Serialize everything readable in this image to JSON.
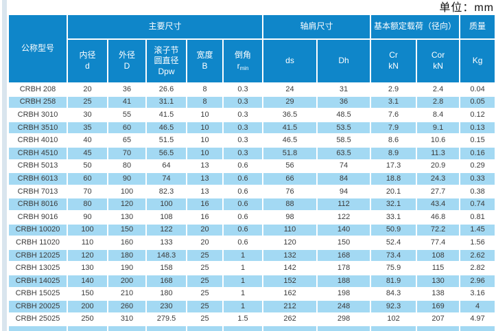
{
  "page": {
    "unit_label": "单位：mm",
    "colors": {
      "header_blue": "#0f86c9",
      "row_alt_blue": "#a3d9f3",
      "side_strip": "#d9e5ee"
    }
  },
  "table": {
    "group_headers": {
      "model": "公称型号",
      "main_dimensions": "主要尺寸",
      "shoulder_dimensions": "轴肩尺寸",
      "load_rating": "基本额定载荷（径向）",
      "mass": "质量"
    },
    "sub_headers": {
      "bore": {
        "line1": "内径",
        "line2": "d"
      },
      "outer": {
        "line1": "外径",
        "line2": "D"
      },
      "pitch": {
        "line1": "滚子节",
        "line2": "圆直径",
        "line3": "Dpw"
      },
      "width": {
        "line1": "宽度",
        "line2": "B"
      },
      "chamfer": {
        "line1": "倒角",
        "symbol": "r",
        "sub": "min"
      },
      "ds": {
        "line1": "ds"
      },
      "dh": {
        "line1": "Dh"
      },
      "cr": {
        "line1": "Cr",
        "line2": "kN"
      },
      "cor": {
        "line1": "Cor",
        "line2": "kN"
      },
      "kg": {
        "line1": "Kg"
      }
    },
    "rows": [
      [
        "CRBH 208",
        "20",
        "36",
        "26.6",
        "8",
        "0.3",
        "24",
        "31",
        "2.9",
        "2.4",
        "0.04"
      ],
      [
        "CRBH 258",
        "25",
        "41",
        "31.1",
        "8",
        "0.3",
        "29",
        "36",
        "3.1",
        "2.8",
        "0.05"
      ],
      [
        "CRBH 3010",
        "30",
        "55",
        "41.5",
        "10",
        "0.3",
        "36.5",
        "48.5",
        "7.6",
        "8.4",
        "0.12"
      ],
      [
        "CRBH 3510",
        "35",
        "60",
        "46.5",
        "10",
        "0.3",
        "41.5",
        "53.5",
        "7.9",
        "9.1",
        "0.13"
      ],
      [
        "CRBH 4010",
        "40",
        "65",
        "51.5",
        "10",
        "0.3",
        "46.5",
        "58.5",
        "8.6",
        "10.6",
        "0.15"
      ],
      [
        "CRBH 4510",
        "45",
        "70",
        "56.5",
        "10",
        "0.3",
        "51.8",
        "63.5",
        "8.9",
        "11.3",
        "0.16"
      ],
      [
        "CRBH 5013",
        "50",
        "80",
        "64",
        "13",
        "0.6",
        "56",
        "74",
        "17.3",
        "20.9",
        "0.29"
      ],
      [
        "CRBH 6013",
        "60",
        "90",
        "74",
        "13",
        "0.6",
        "66",
        "84",
        "18.8",
        "24.3",
        "0.33"
      ],
      [
        "CRBH 7013",
        "70",
        "100",
        "82.3",
        "13",
        "0.6",
        "76",
        "94",
        "20.1",
        "27.7",
        "0.38"
      ],
      [
        "CRBH 8016",
        "80",
        "120",
        "100",
        "16",
        "0.6",
        "88",
        "112",
        "32.1",
        "43.4",
        "0.74"
      ],
      [
        "CRBH 9016",
        "90",
        "130",
        "108",
        "16",
        "0.6",
        "98",
        "122",
        "33.1",
        "46.8",
        "0.81"
      ],
      [
        "CRBH 10020",
        "100",
        "150",
        "122",
        "20",
        "0.6",
        "110",
        "140",
        "50.9",
        "72.2",
        "1.45"
      ],
      [
        "CRBH 11020",
        "110",
        "160",
        "133",
        "20",
        "0.6",
        "120",
        "150",
        "52.4",
        "77.4",
        "1.56"
      ],
      [
        "CRBH 12025",
        "120",
        "180",
        "148.3",
        "25",
        "1",
        "132",
        "168",
        "73.4",
        "108",
        "2.62"
      ],
      [
        "CRBH 13025",
        "130",
        "190",
        "158",
        "25",
        "1",
        "142",
        "178",
        "75.9",
        "115",
        "2.82"
      ],
      [
        "CRBH 14025",
        "140",
        "200",
        "168",
        "25",
        "1",
        "152",
        "188",
        "81.9",
        "130",
        "2.96"
      ],
      [
        "CRBH 15025",
        "150",
        "210",
        "180",
        "25",
        "1",
        "162",
        "198",
        "84.3",
        "138",
        "3.16"
      ],
      [
        "CRBH 20025",
        "200",
        "260",
        "230",
        "25",
        "1",
        "212",
        "248",
        "92.3",
        "169",
        "4"
      ],
      [
        "CRBH 25025",
        "250",
        "310",
        "279.5",
        "25",
        "1.5",
        "262",
        "298",
        "102",
        "207",
        "4.97"
      ]
    ]
  }
}
